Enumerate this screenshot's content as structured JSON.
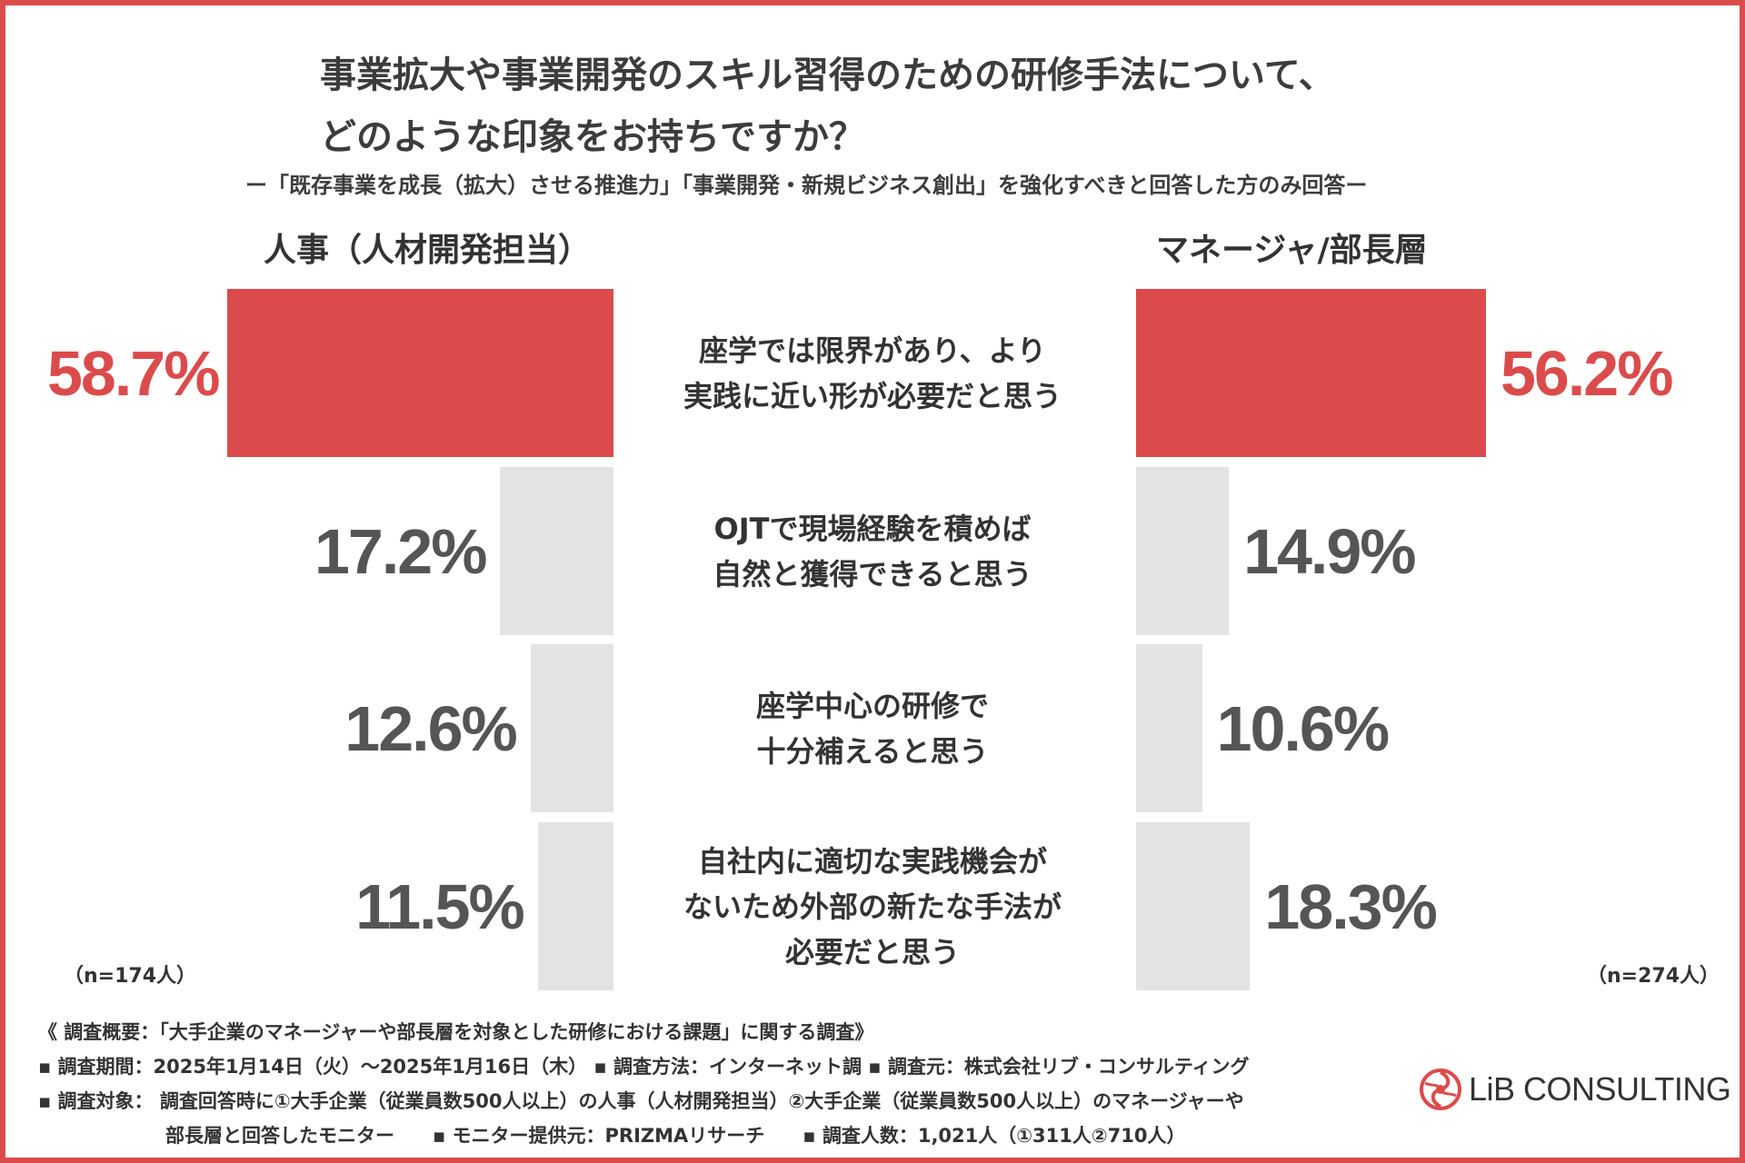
{
  "title_line1": "事業拡大や事業開発のスキル習得のための研修手法について、",
  "title_line2": "どのような印象をお持ちですか？",
  "subtitle": "ー「既存事業を成長（拡大）させる推進力」「事業開発・新規ビジネス創出」を強化すべきと回答した方のみ回答ー",
  "colors": {
    "highlight": "#dc4b4b",
    "neutral": "#e3e3e3",
    "neutral_text": "#555555",
    "border": "#dc4b4b"
  },
  "chart_data": {
    "type": "bar",
    "orientation": "horizontal-butterfly",
    "categories": [
      [
        "座学では限界があり、より",
        "実践に近い形が必要だと思う"
      ],
      [
        "OJTで現場経験を積めば",
        "自然と獲得できると思う"
      ],
      [
        "座学中心の研修で",
        "十分補えると思う"
      ],
      [
        "自社内に適切な実践機会が",
        "ないため外部の新たな手法が",
        "必要だと思う"
      ]
    ],
    "series": [
      {
        "name": "人事（人材開発担当）",
        "side": "left",
        "n_label": "（n=174人）",
        "values": [
          58.7,
          17.2,
          12.6,
          11.5
        ],
        "labels": [
          "58.7%",
          "17.2%",
          "12.6%",
          "11.5%"
        ]
      },
      {
        "name": "マネージャ/部長層",
        "side": "right",
        "n_label": "（n=274人）",
        "values": [
          56.2,
          14.9,
          10.6,
          18.3
        ],
        "labels": [
          "56.2%",
          "14.9%",
          "10.6%",
          "18.3%"
        ]
      }
    ],
    "unit": "%",
    "highlight_category_index": 0
  },
  "footer": {
    "summary": "《 調査概要：「大手企業のマネージャーや部長層を対象とした研修における課題」に関する調査》",
    "line1": "▪ 調査期間：2025年1月14日（火）〜2025年1月16日（木） ▪ 調査方法：インターネット調 ▪ 調査元：株式会社リブ・コンサルティング",
    "line2": "▪ 調査対象： 調査回答時に①大手企業（従業員数500人以上）の人事（人材開発担当）②大手企業（従業員数500人以上）のマネージャーや",
    "line3": "部長層と回答したモニター　　▪ モニター提供元：PRIZMAリサーチ　　▪ 調査人数：1,021人（①311人②710人）"
  },
  "logo": {
    "text": "LiB CONSULTING",
    "icon": "swirl-logo-icon"
  }
}
